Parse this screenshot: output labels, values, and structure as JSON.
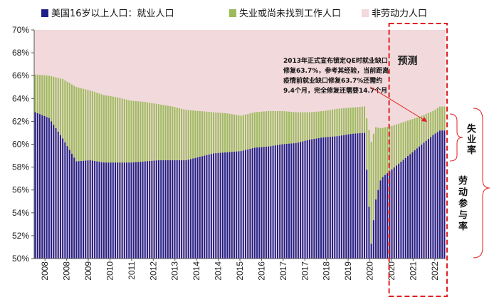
{
  "chart_data": {
    "type": "bar",
    "stacked": true,
    "title": "",
    "xlabel": "",
    "ylabel": "",
    "ylim": [
      50,
      70
    ],
    "y_ticks": [
      "50%",
      "52%",
      "54%",
      "56%",
      "58%",
      "60%",
      "62%",
      "64%",
      "66%",
      "68%",
      "70%"
    ],
    "x_ticks": [
      "2008",
      "2008",
      "2009",
      "2010",
      "2011",
      "2012",
      "2013",
      "2014",
      "2014",
      "2015",
      "2016",
      "2017",
      "2017",
      "2018",
      "2019",
      "2020",
      "2020",
      "2021",
      "2022"
    ],
    "legend": [
      {
        "label": "美国16岁以上人口：就业人口",
        "color": "#1f1f8a"
      },
      {
        "label": "失业或尚未找到工作人口",
        "color": "#9bbb59"
      },
      {
        "label": "非劳动力人口",
        "color": "#f2d9dc"
      }
    ],
    "series_anchor_years": [
      2008.0,
      2008.5,
      2009.0,
      2009.5,
      2010.0,
      2010.5,
      2011.0,
      2011.5,
      2012.0,
      2012.5,
      2013.0,
      2013.5,
      2014.0,
      2014.5,
      2015.0,
      2015.5,
      2016.0,
      2016.5,
      2017.0,
      2017.5,
      2018.0,
      2018.5,
      2019.0,
      2019.5,
      2020.0,
      2020.25,
      2020.4,
      2020.6,
      2021.0,
      2021.5,
      2022.0,
      2022.5,
      2022.75
    ],
    "employment_population_ratio": [
      62.8,
      62.3,
      60.5,
      58.5,
      58.6,
      58.4,
      58.4,
      58.4,
      58.5,
      58.6,
      58.6,
      58.6,
      58.9,
      59.2,
      59.3,
      59.4,
      59.7,
      59.8,
      60.0,
      60.1,
      60.4,
      60.6,
      60.7,
      60.9,
      61.0,
      51.3,
      55.0,
      57.0,
      57.8,
      58.8,
      59.8,
      60.8,
      61.2
    ],
    "labor_force_participation": [
      66.1,
      66.0,
      65.7,
      65.0,
      64.7,
      64.3,
      64.1,
      63.8,
      63.7,
      63.5,
      63.3,
      63.0,
      62.9,
      62.8,
      62.7,
      62.5,
      62.8,
      62.9,
      62.9,
      62.8,
      62.8,
      62.9,
      63.1,
      63.2,
      63.3,
      60.2,
      61.5,
      61.4,
      61.6,
      62.0,
      62.4,
      62.9,
      63.3
    ],
    "forecast_start_year": 2021.0,
    "annotation": "2013年正式宣布锁定QE时就业缺口修复63.7%，参考其经验，当前距离疫情前就业缺口修复63.7%还需约9.4个月，完全修复还需要14.7个月",
    "annotation_lines": [
      "2013年正式宣布锁定QE时就业缺口",
      "修复63.7%，参考其经验，当前距离",
      "疫情前就业缺口修复63.7%还需约",
      "9.4个月，完全修复还需要14.7个月"
    ],
    "forecast_label": "预测",
    "right_labels": {
      "unemployment": "失业率",
      "participation": "劳动参与率"
    }
  }
}
